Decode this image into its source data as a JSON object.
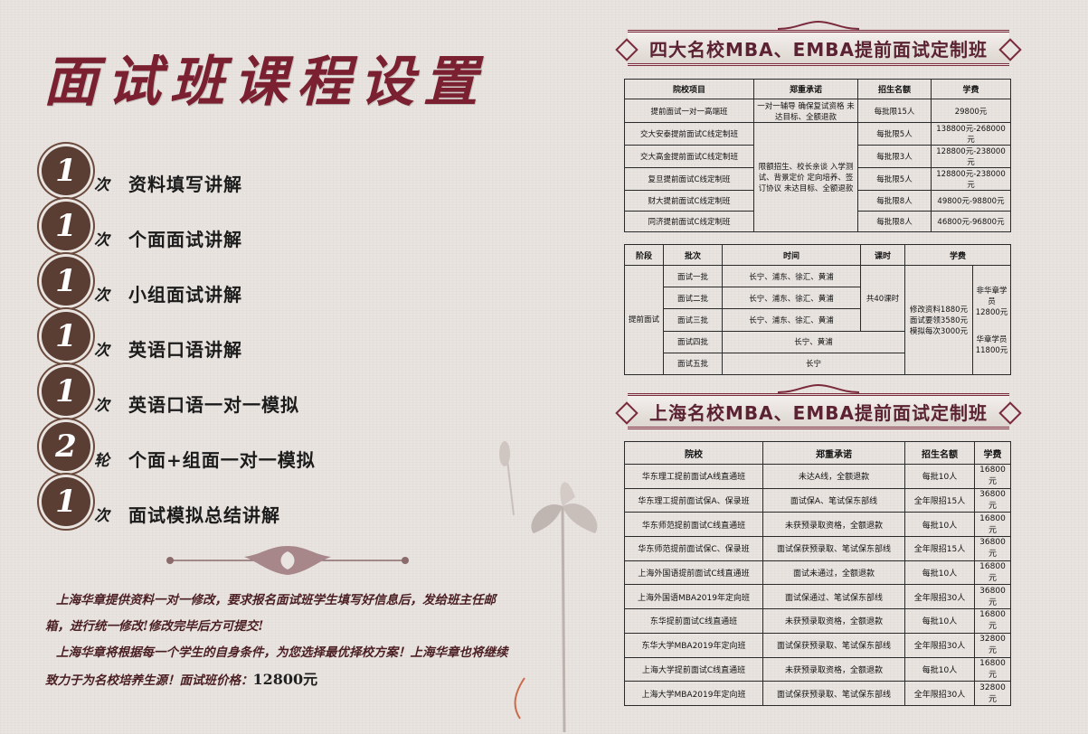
{
  "title": "面试班课程设置",
  "items": [
    {
      "num": "1",
      "unit": "次",
      "text": "资料填写讲解"
    },
    {
      "num": "1",
      "unit": "次",
      "text": "个面面试讲解"
    },
    {
      "num": "1",
      "unit": "次",
      "text": "小组面试讲解"
    },
    {
      "num": "1",
      "unit": "次",
      "text": "英语口语讲解"
    },
    {
      "num": "1",
      "unit": "次",
      "text": "英语口语一对一模拟"
    },
    {
      "num": "2",
      "unit": "轮",
      "text": "个面+组面一对一模拟"
    },
    {
      "num": "1",
      "unit": "次",
      "text": "面试模拟总结讲解"
    }
  ],
  "para1": "上海华章提供资料一对一修改，要求报名面试班学生填写好信息后，发给班主任邮箱，进行统一修改!修改完毕后方可提交!",
  "para2": "上海华章将根据每一个学生的自身条件，为您选择最优择校方案！上海华章也将继续致力于为名校培养生源！面试班价格：",
  "price": "12800元",
  "banner1": "四大名校MBA、EMBA提前面试定制班",
  "banner2": "上海名校MBA、EMBA提前面试定制班",
  "table1": {
    "headers": [
      "院校项目",
      "郑重承诺",
      "招生名额",
      "学费"
    ],
    "promise_a": "一对一辅导 确保复试资格 未达目标、全额退款",
    "promise_b": "限额招生、校长亲谈 入学测试、背景定价 定向培养、签订协议 未达目标、全额退款",
    "rows": [
      {
        "name": "提前面试一对一高端班",
        "quota": "每批限15人",
        "fee": "29800元"
      },
      {
        "name": "交大安泰提前面试C线定制班",
        "quota": "每批限5人",
        "fee": "138800元-268000元"
      },
      {
        "name": "交大高金提前面试C线定制班",
        "quota": "每批限3人",
        "fee": "128800元-238000元"
      },
      {
        "name": "复旦提前面试C线定制班",
        "quota": "每批限5人",
        "fee": "128800元-238000元"
      },
      {
        "name": "财大提前面试C线定制班",
        "quota": "每批限8人",
        "fee": "49800元-98800元"
      },
      {
        "name": "同济提前面试C线定制班",
        "quota": "每批限8人",
        "fee": "46800元-96800元"
      }
    ]
  },
  "table2": {
    "headers": [
      "阶段",
      "批次",
      "时间",
      "课时",
      "学费"
    ],
    "stage": "提前面试",
    "hours": "共40课时",
    "fee_detail": "修改资料1880元 面试要领3580元 模拟每次3000元",
    "fee_nonmember": "非华章学员 12800元",
    "fee_member": "华章学员 11800元",
    "rows": [
      {
        "batch": "面试一批",
        "time": "长宁、浦东、徐汇、黄浦"
      },
      {
        "batch": "面试二批",
        "time": "长宁、浦东、徐汇、黄浦"
      },
      {
        "batch": "面试三批",
        "time": "长宁、浦东、徐汇、黄浦"
      },
      {
        "batch": "面试四批",
        "time": "长宁、黄浦"
      },
      {
        "batch": "面试五批",
        "time": "长宁"
      }
    ]
  },
  "table3": {
    "headers": [
      "院校",
      "郑重承诺",
      "招生名额",
      "学费"
    ],
    "rows": [
      {
        "school": "华东理工提前面试A线直通班",
        "promise": "未达A线，全额退款",
        "quota": "每批10人",
        "fee": "16800元"
      },
      {
        "school": "华东理工提前面试保A、保录班",
        "promise": "面试保A、笔试保东部线",
        "quota": "全年限招15人",
        "fee": "36800元"
      },
      {
        "school": "华东师范提前面试C线直通班",
        "promise": "未获预录取资格，全额退款",
        "quota": "每批10人",
        "fee": "16800元"
      },
      {
        "school": "华东师范提前面试保C、保录班",
        "promise": "面试保获预录取、笔试保东部线",
        "quota": "全年限招15人",
        "fee": "36800元"
      },
      {
        "school": "上海外国语提前面试C线直通班",
        "promise": "面试未通过，全额退款",
        "quota": "每批10人",
        "fee": "16800元"
      },
      {
        "school": "上海外国语MBA2019年定向班",
        "promise": "面试保通过、笔试保东部线",
        "quota": "全年限招30人",
        "fee": "36800元"
      },
      {
        "school": "东华提前面试C线直通班",
        "promise": "未获预录取资格，全额退款",
        "quota": "每批10人",
        "fee": "16800元"
      },
      {
        "school": "东华大学MBA2019年定向班",
        "promise": "面试保获预录取、笔试保东部线",
        "quota": "全年限招30人",
        "fee": "32800元"
      },
      {
        "school": "上海大学提前面试C线直通班",
        "promise": "未获预录取资格，全额退款",
        "quota": "每批10人",
        "fee": "16800元"
      },
      {
        "school": "上海大学MBA2019年定向班",
        "promise": "面试保获预录取、笔试保东部线",
        "quota": "全年限招30人",
        "fee": "32800元"
      }
    ]
  }
}
